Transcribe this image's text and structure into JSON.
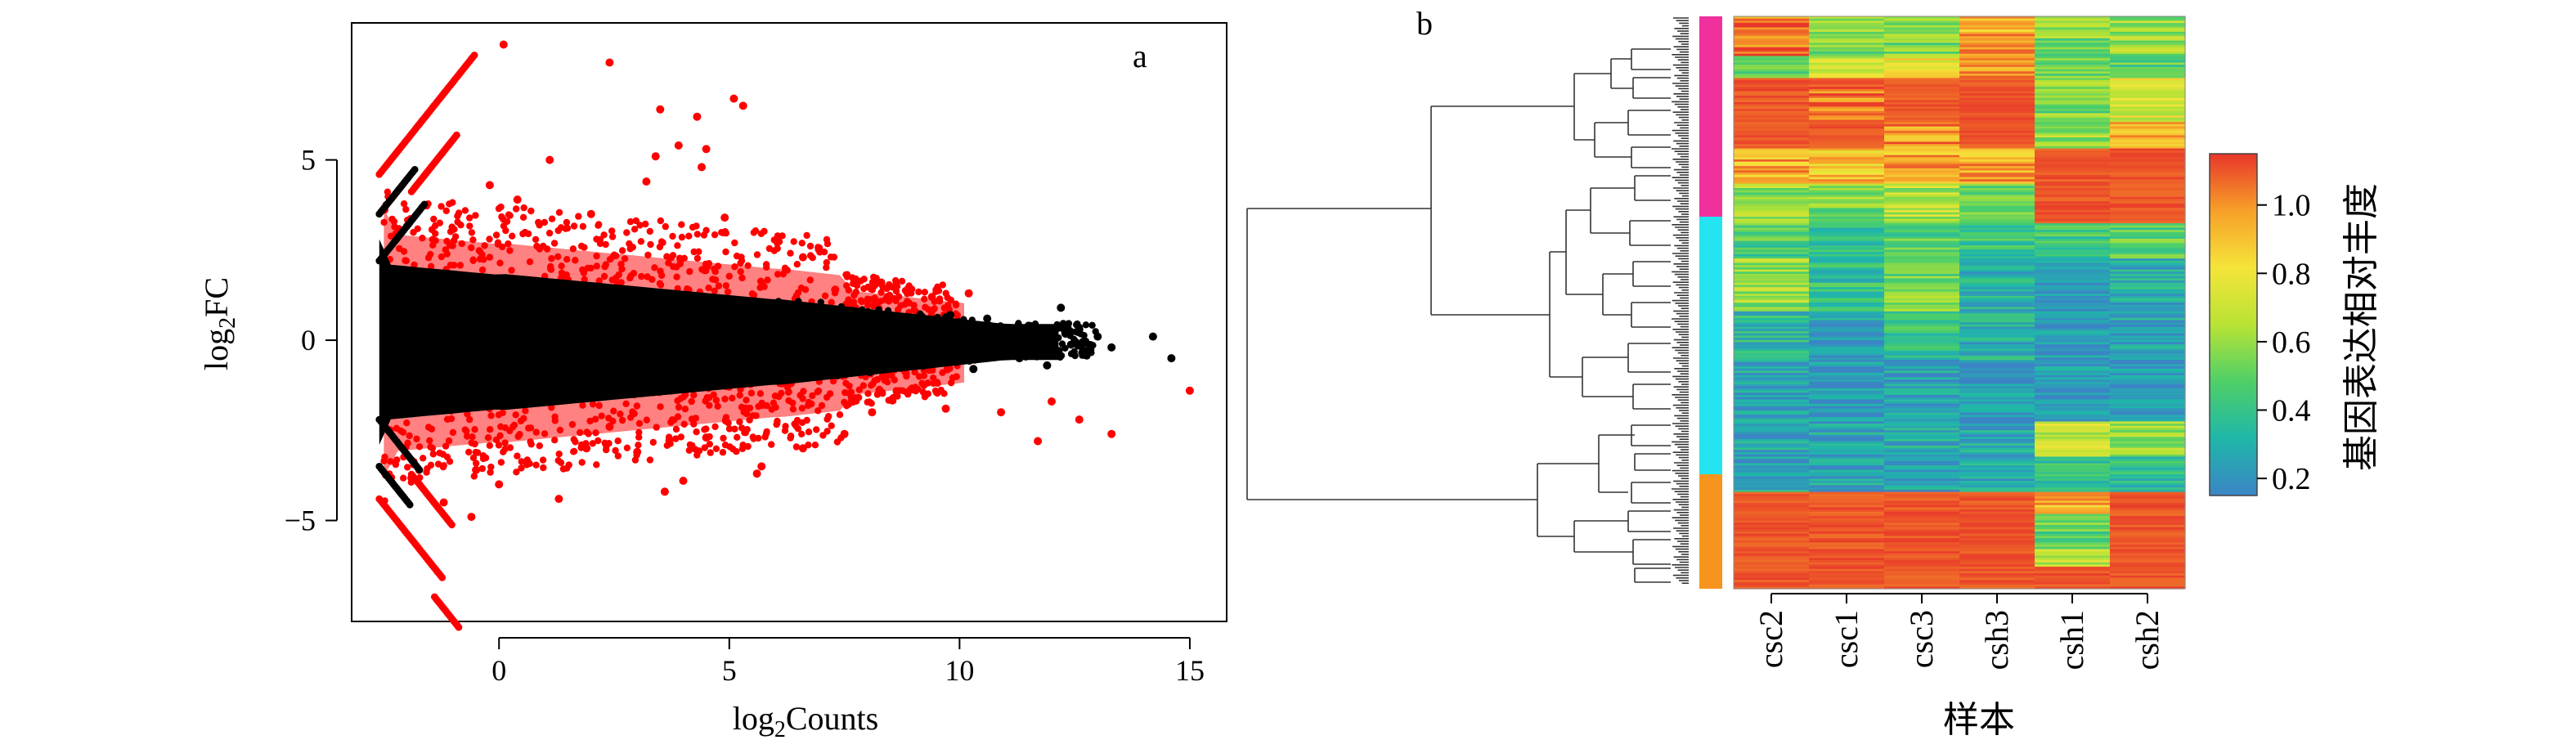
{
  "chart_data": [
    {
      "panel": "a",
      "type": "scatter",
      "title": "",
      "xlabel": "log2Counts",
      "ylabel": "log2FC",
      "xlabel_parts": {
        "pre": "log",
        "sub": "2",
        "post": "Counts"
      },
      "ylabel_parts": {
        "pre": "log",
        "sub": "2",
        "post": "FC"
      },
      "xlim": [
        -3.2,
        15.8
      ],
      "ylim": [
        -7.8,
        8.8
      ],
      "xticks": [
        0,
        5,
        10,
        15
      ],
      "xtick_labels": [
        "0",
        "5",
        "10",
        "15"
      ],
      "yticks": [
        -5,
        0,
        5
      ],
      "ytick_labels": [
        "−5",
        "0",
        "5"
      ],
      "grid": false,
      "legend": "none",
      "series": [
        {
          "color": "#000000",
          "role": "not significant",
          "points": [
            [
              14.2,
              0.1
            ],
            [
              14.6,
              -0.5
            ],
            [
              13.3,
              -0.2
            ],
            [
              13.0,
              0.1
            ],
            [
              12.6,
              0.3
            ],
            [
              12.2,
              0.9
            ],
            [
              12.7,
              -0.4
            ],
            [
              11.5,
              0.4
            ],
            [
              11.3,
              -0.5
            ],
            [
              11.9,
              -0.7
            ],
            [
              10.6,
              0.6
            ],
            [
              10.3,
              -0.8
            ],
            [
              11.0,
              0.2
            ],
            [
              9.8,
              0.7
            ],
            [
              9.5,
              -0.6
            ],
            [
              10.9,
              -0.2
            ],
            [
              12.0,
              0.0
            ]
          ]
        },
        {
          "color": "#ff0000",
          "role": "significant",
          "points": [
            [
              0.1,
              8.2
            ],
            [
              2.4,
              7.7
            ],
            [
              5.1,
              6.7
            ],
            [
              5.3,
              6.5
            ],
            [
              3.5,
              6.4
            ],
            [
              4.3,
              6.2
            ],
            [
              3.9,
              5.4
            ],
            [
              4.5,
              5.3
            ],
            [
              3.4,
              5.1
            ],
            [
              4.4,
              4.8
            ],
            [
              3.2,
              4.4
            ],
            [
              1.1,
              5.0
            ],
            [
              -0.2,
              4.3
            ],
            [
              0.4,
              3.9
            ],
            [
              2.0,
              3.5
            ],
            [
              4.9,
              3.4
            ],
            [
              6.6,
              2.3
            ],
            [
              7.3,
              1.4
            ],
            [
              8.3,
              1.6
            ],
            [
              9.4,
              1.2
            ],
            [
              10.2,
              1.3
            ],
            [
              15.0,
              -1.4
            ],
            [
              13.3,
              -2.6
            ],
            [
              12.6,
              -2.2
            ],
            [
              12.0,
              -1.7
            ],
            [
              11.7,
              -2.8
            ],
            [
              10.9,
              -2.0
            ],
            [
              9.7,
              -1.9
            ],
            [
              8.1,
              -2.0
            ],
            [
              7.5,
              -2.6
            ],
            [
              6.6,
              -3.0
            ],
            [
              5.7,
              -3.5
            ],
            [
              5.6,
              -3.7
            ],
            [
              4.0,
              -3.9
            ],
            [
              3.6,
              -4.2
            ],
            [
              1.3,
              -4.4
            ],
            [
              0.0,
              -4.0
            ],
            [
              -0.6,
              -4.9
            ],
            [
              -1.2,
              -4.5
            ],
            [
              -0.5,
              -3.6
            ],
            [
              1.9,
              -3.0
            ],
            [
              3.0,
              -3.1
            ],
            [
              4.5,
              -2.7
            ],
            [
              2.4,
              -2.4
            ]
          ]
        }
      ]
    },
    {
      "panel": "b",
      "type": "heatmap",
      "title": "",
      "xlabel": "样本",
      "columns": [
        "csc2",
        "csc1",
        "csc3",
        "csh3",
        "csh1",
        "csh2"
      ],
      "colorbar": {
        "label": "基因表达相对丰度",
        "ticks": [
          0.2,
          0.4,
          0.6,
          0.8,
          1.0
        ],
        "tick_labels": [
          "0.2",
          "0.4",
          "0.6",
          "0.8",
          "1.0"
        ],
        "range": [
          0.15,
          1.15
        ],
        "colors": [
          "#3b85c5",
          "#1fb7a9",
          "#4ecf68",
          "#b9e334",
          "#f5e43a",
          "#f7a028",
          "#e8362a"
        ]
      },
      "clusters": [
        {
          "color": "#f0309c",
          "fraction": 0.35
        },
        {
          "color": "#23e4f0",
          "fraction": 0.45
        },
        {
          "color": "#f7941d",
          "fraction": 0.2
        }
      ],
      "bands": [
        {
          "rows": 18,
          "values": [
            1.05,
            0.55,
            0.55,
            0.95,
            0.55,
            0.6
          ]
        },
        {
          "rows": 10,
          "values": [
            0.55,
            0.7,
            0.8,
            1.0,
            0.55,
            0.5
          ]
        },
        {
          "rows": 20,
          "values": [
            1.1,
            1.05,
            1.1,
            1.1,
            0.55,
            0.75
          ]
        },
        {
          "rows": 12,
          "values": [
            1.1,
            1.1,
            1.0,
            1.1,
            0.6,
            0.9
          ]
        },
        {
          "rows": 16,
          "values": [
            0.95,
            0.9,
            0.95,
            0.95,
            1.1,
            1.1
          ]
        },
        {
          "rows": 18,
          "values": [
            0.6,
            0.55,
            0.65,
            0.55,
            1.1,
            1.1
          ]
        },
        {
          "rows": 16,
          "values": [
            0.45,
            0.4,
            0.5,
            0.4,
            0.45,
            0.5
          ]
        },
        {
          "rows": 24,
          "values": [
            0.6,
            0.4,
            0.55,
            0.3,
            0.2,
            0.3
          ]
        },
        {
          "rows": 22,
          "values": [
            0.35,
            0.25,
            0.4,
            0.3,
            0.2,
            0.25
          ]
        },
        {
          "rows": 28,
          "values": [
            0.25,
            0.2,
            0.25,
            0.2,
            0.2,
            0.2
          ]
        },
        {
          "rows": 16,
          "values": [
            0.25,
            0.25,
            0.3,
            0.25,
            0.7,
            0.6
          ]
        },
        {
          "rows": 16,
          "values": [
            0.25,
            0.25,
            0.25,
            0.3,
            0.4,
            0.35
          ]
        },
        {
          "rows": 10,
          "values": [
            1.1,
            1.1,
            1.1,
            1.1,
            0.95,
            1.1
          ]
        },
        {
          "rows": 16,
          "values": [
            1.1,
            1.1,
            1.1,
            1.1,
            0.5,
            1.1
          ]
        },
        {
          "rows": 8,
          "values": [
            1.1,
            1.1,
            1.1,
            1.1,
            0.7,
            1.1
          ]
        },
        {
          "rows": 10,
          "values": [
            1.1,
            1.1,
            1.1,
            1.1,
            1.1,
            1.1
          ]
        }
      ]
    }
  ]
}
